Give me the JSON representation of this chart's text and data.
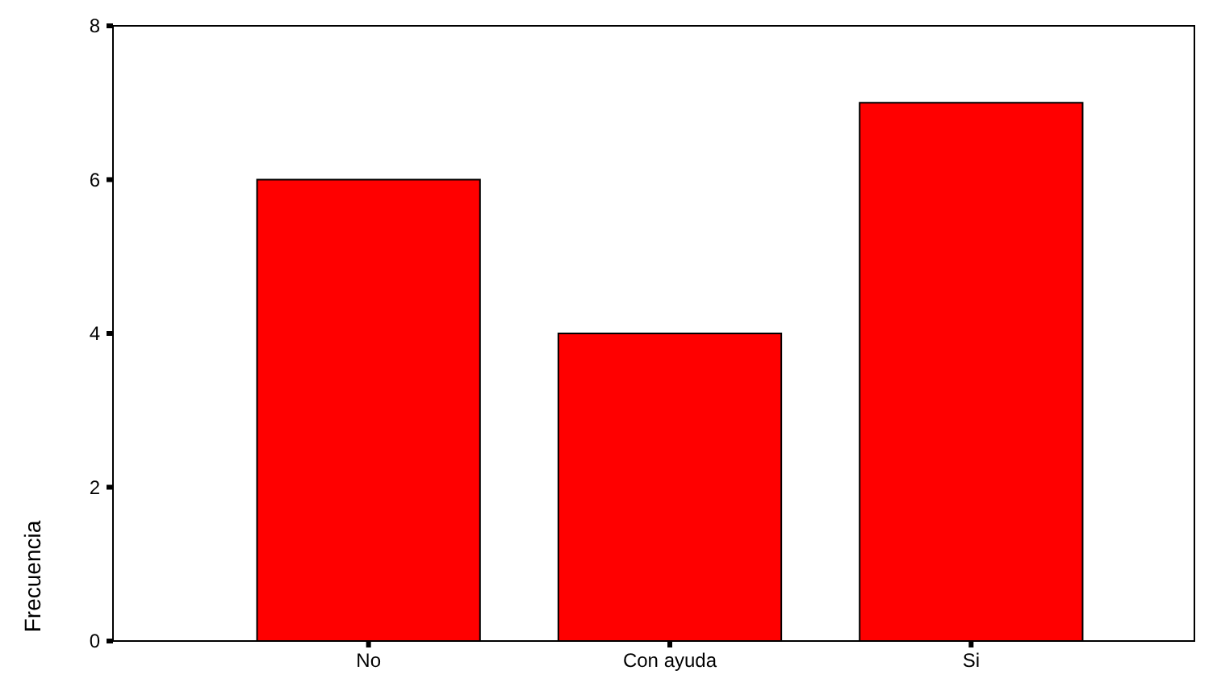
{
  "chart_data": {
    "type": "bar",
    "ylabel": "Frecuencia",
    "categories": [
      "No",
      "Con ayuda",
      "Si"
    ],
    "values": [
      6,
      4,
      7
    ],
    "color": "#ff0000",
    "ylim": [
      0,
      8
    ],
    "yticks": [
      0,
      2,
      4,
      6,
      8
    ],
    "grid": false
  }
}
